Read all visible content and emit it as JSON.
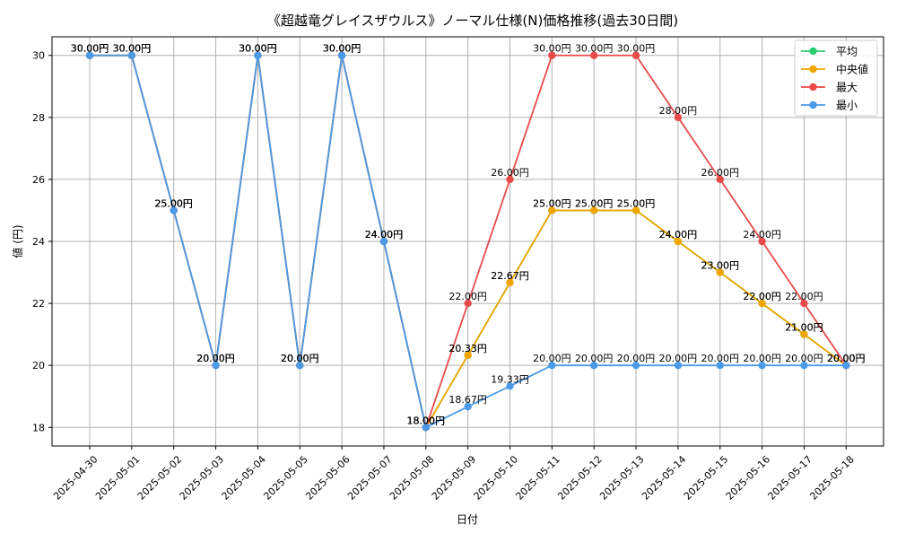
{
  "chart_data": {
    "type": "line",
    "title": "《超越竜グレイスザウルス》ノーマル仕様(N)価格推移(過去30日間)",
    "xlabel": "日付",
    "ylabel": "値 (円)",
    "ylim": [
      17.4,
      30.6
    ],
    "yticks": [
      18,
      20,
      22,
      24,
      26,
      28,
      30
    ],
    "grid": true,
    "legend_position": "top-right",
    "categories": [
      "2025-04-30",
      "2025-05-01",
      "2025-05-02",
      "2025-05-03",
      "2025-05-04",
      "2025-05-05",
      "2025-05-06",
      "2025-05-07",
      "2025-05-08",
      "2025-05-09",
      "2025-05-10",
      "2025-05-11",
      "2025-05-12",
      "2025-05-13",
      "2025-05-14",
      "2025-05-15",
      "2025-05-16",
      "2025-05-17",
      "2025-05-18"
    ],
    "series": [
      {
        "name": "平均",
        "color": "#2ecc71",
        "values": [
          30,
          30,
          25,
          20,
          30,
          20,
          30,
          24,
          18,
          20.33,
          22.67,
          25,
          25,
          25,
          24,
          23,
          22,
          21,
          20
        ]
      },
      {
        "name": "中央値",
        "color": "#f0a500",
        "values": [
          30,
          30,
          25,
          20,
          30,
          20,
          30,
          24,
          18,
          20.33,
          22.67,
          25,
          25,
          25,
          24,
          23,
          22,
          21,
          20
        ]
      },
      {
        "name": "最大",
        "color": "#e84a4a",
        "values": [
          30,
          30,
          25,
          20,
          30,
          20,
          30,
          24,
          18,
          22,
          26,
          30,
          30,
          30,
          28,
          26,
          24,
          22,
          20
        ]
      },
      {
        "name": "最小",
        "color": "#4a9ae8",
        "values": [
          30,
          30,
          25,
          20,
          30,
          20,
          30,
          24,
          18,
          18.67,
          19.33,
          20,
          20,
          20,
          20,
          20,
          20,
          20,
          20
        ]
      }
    ],
    "label_unit": "円"
  }
}
